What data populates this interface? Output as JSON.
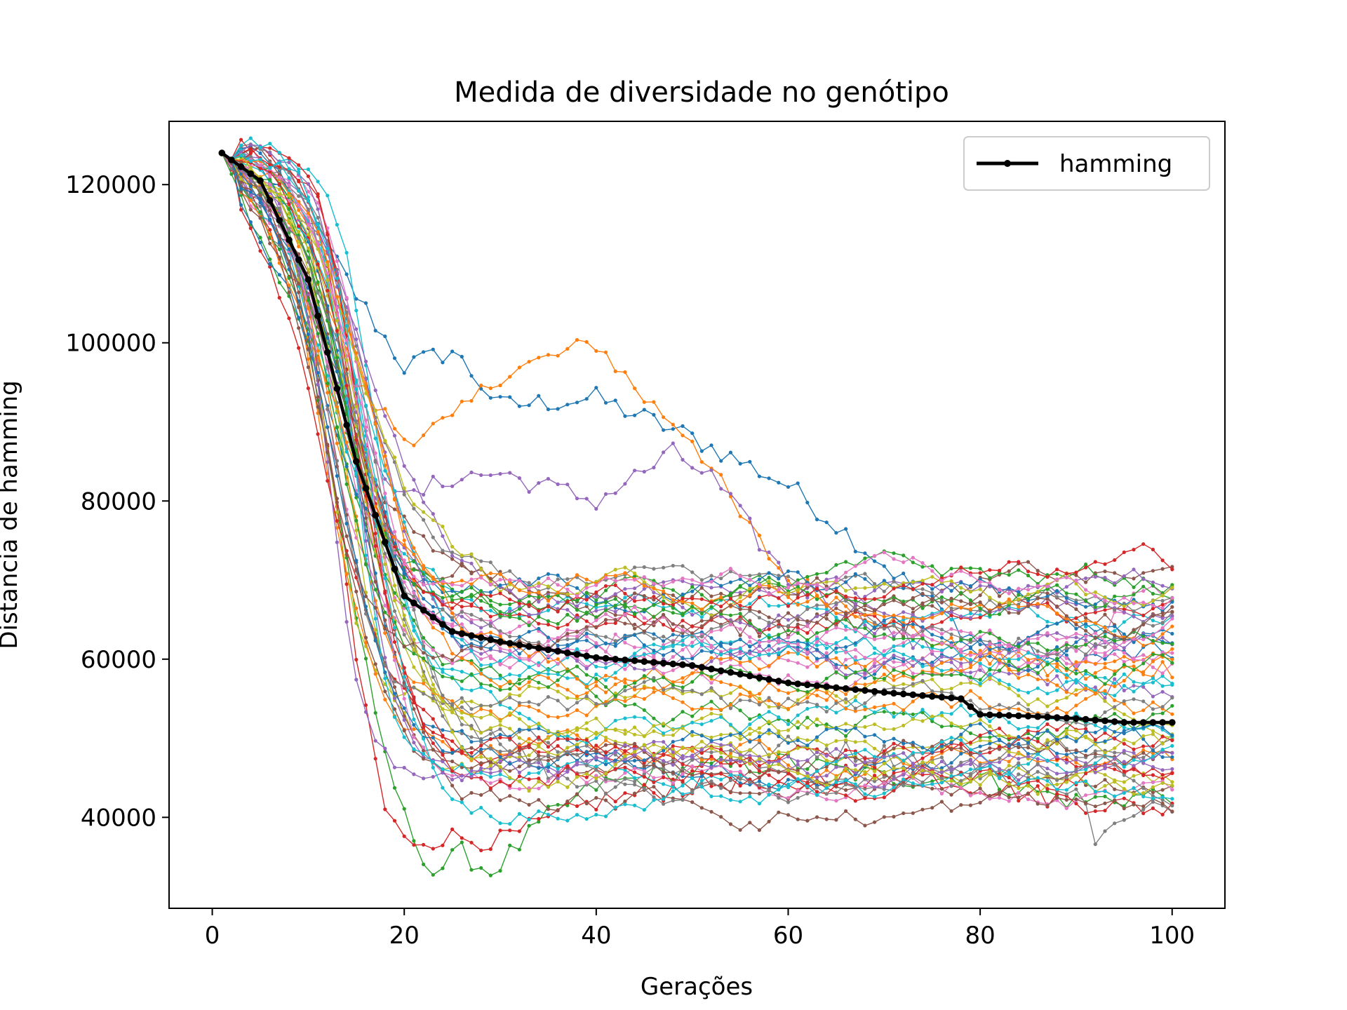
{
  "chart_data": {
    "type": "line",
    "title": "Medida de diversidade no genótipo",
    "xlabel": "Gerações",
    "ylabel": "Distancia de hamming",
    "xlim": [
      -4.5,
      105.5
    ],
    "ylim": [
      28500,
      128000
    ],
    "x_ticks": [
      0,
      20,
      40,
      60,
      80,
      100
    ],
    "y_ticks": [
      40000,
      60000,
      80000,
      100000,
      120000
    ],
    "x_tick_labels": [
      "0",
      "20",
      "40",
      "60",
      "80",
      "100"
    ],
    "y_tick_labels": [
      "40000",
      "60000",
      "80000",
      "100000",
      "120000"
    ],
    "legend": {
      "position": "top-right",
      "entries": [
        "hamming"
      ]
    },
    "grid": false,
    "colors": [
      "#1f77b4",
      "#ff7f0e",
      "#2ca02c",
      "#d62728",
      "#9467bd",
      "#8c564b",
      "#e377c2",
      "#7f7f7f",
      "#bcbd22",
      "#17becf"
    ],
    "highlight_color": "#000000",
    "x_start": 1,
    "x_end": 100,
    "mean_series": {
      "name": "hamming",
      "x": [
        1,
        5,
        10,
        15,
        20,
        25,
        30,
        40,
        50,
        60,
        70,
        78,
        80,
        85,
        90,
        95,
        100
      ],
      "values": [
        124000,
        120500,
        108000,
        85000,
        68000,
        63500,
        62200,
        60200,
        59200,
        57000,
        55800,
        55000,
        53000,
        52800,
        52500,
        52000,
        52000
      ]
    },
    "runs": {
      "count": 60,
      "start": 124000,
      "plateau_range": [
        42000,
        72000
      ],
      "notable": [
        {
          "x": [
            1,
            10,
            15,
            20,
            25,
            30,
            40,
            50,
            60,
            70,
            80,
            90,
            100
          ],
          "values": [
            124000,
            116000,
            106000,
            97000,
            99000,
            92000,
            93000,
            88000,
            82000,
            72000,
            62000,
            60000,
            61000
          ]
        },
        {
          "x": [
            1,
            10,
            15,
            20,
            25,
            30,
            35,
            40,
            45,
            50,
            55,
            60,
            70,
            80,
            90,
            100
          ],
          "values": [
            124000,
            112000,
            95000,
            88000,
            90000,
            96000,
            98000,
            100000,
            93000,
            88000,
            78000,
            70000,
            65000,
            60000,
            58000,
            59000
          ]
        },
        {
          "x": [
            1,
            10,
            17,
            20,
            23,
            26,
            29,
            35,
            40,
            50,
            60,
            70,
            80,
            90,
            100
          ],
          "values": [
            124000,
            100000,
            52000,
            40000,
            33000,
            35500,
            33000,
            40000,
            44000,
            46000,
            47000,
            45000,
            45000,
            42000,
            43000
          ]
        },
        {
          "x": [
            1,
            10,
            15,
            18,
            20,
            25,
            30,
            40,
            50,
            60,
            70,
            80,
            90,
            100
          ],
          "values": [
            124000,
            105000,
            60000,
            41000,
            37000,
            37500,
            37000,
            42000,
            44000,
            45000,
            46000,
            44000,
            42000,
            41000
          ]
        },
        {
          "x": [
            1,
            10,
            15,
            20,
            25,
            30,
            40,
            48,
            52,
            60,
            70,
            80,
            90,
            100
          ],
          "values": [
            124000,
            112000,
            90000,
            80000,
            83000,
            83500,
            80000,
            86000,
            83000,
            70000,
            64000,
            58000,
            57000,
            55000
          ]
        },
        {
          "x": [
            1,
            10,
            15,
            20,
            30,
            40,
            50,
            60,
            65,
            70,
            75,
            80,
            88,
            95,
            100
          ],
          "values": [
            124000,
            110000,
            88000,
            72000,
            70000,
            66000,
            64000,
            64000,
            65000,
            63000,
            66000,
            68500,
            68000,
            63000,
            66000
          ]
        },
        {
          "x": [
            1,
            10,
            15,
            20,
            30,
            40,
            50,
            60,
            70,
            80,
            90,
            97,
            100
          ],
          "values": [
            124000,
            108000,
            80000,
            66000,
            64000,
            62000,
            61000,
            60000,
            59000,
            58000,
            60000,
            69000,
            68500
          ]
        },
        {
          "x": [
            1,
            10,
            15,
            20,
            25,
            30,
            35,
            40,
            50,
            60,
            70,
            80,
            90,
            92,
            100
          ],
          "values": [
            124000,
            106000,
            82000,
            62000,
            55000,
            50000,
            46000,
            44000,
            47000,
            49000,
            48000,
            46000,
            44000,
            37500,
            42000
          ]
        }
      ]
    }
  }
}
